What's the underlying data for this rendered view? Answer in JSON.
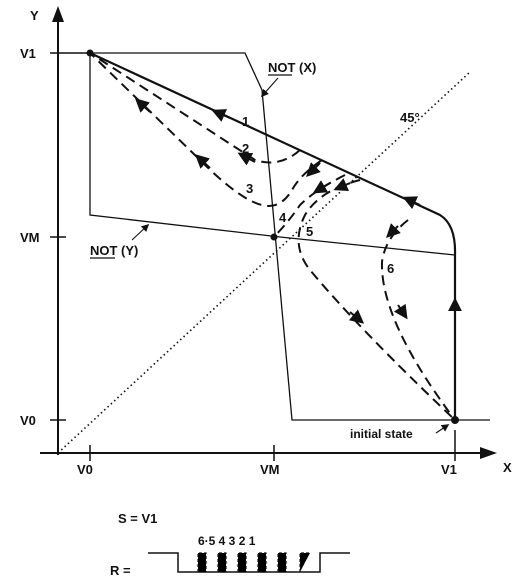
{
  "axes": {
    "x_label": "X",
    "y_label": "Y",
    "x_ticks": [
      "V0",
      "VM",
      "V1"
    ],
    "y_ticks": [
      "V1",
      "VM",
      "V0"
    ]
  },
  "curves": {
    "not_x": "NOT (X)",
    "not_x_underline": "NO",
    "not_y": "NOT (Y)",
    "not_y_underline": "NO",
    "diagonal": "45°"
  },
  "trajectories": [
    "1",
    "2",
    "3",
    "4",
    "5",
    "6"
  ],
  "initial_state": "initial state",
  "set_signal": "S = V1",
  "reset_signal": {
    "label": "R =",
    "pulse_labels": "6·5  4  3  2  1"
  }
}
